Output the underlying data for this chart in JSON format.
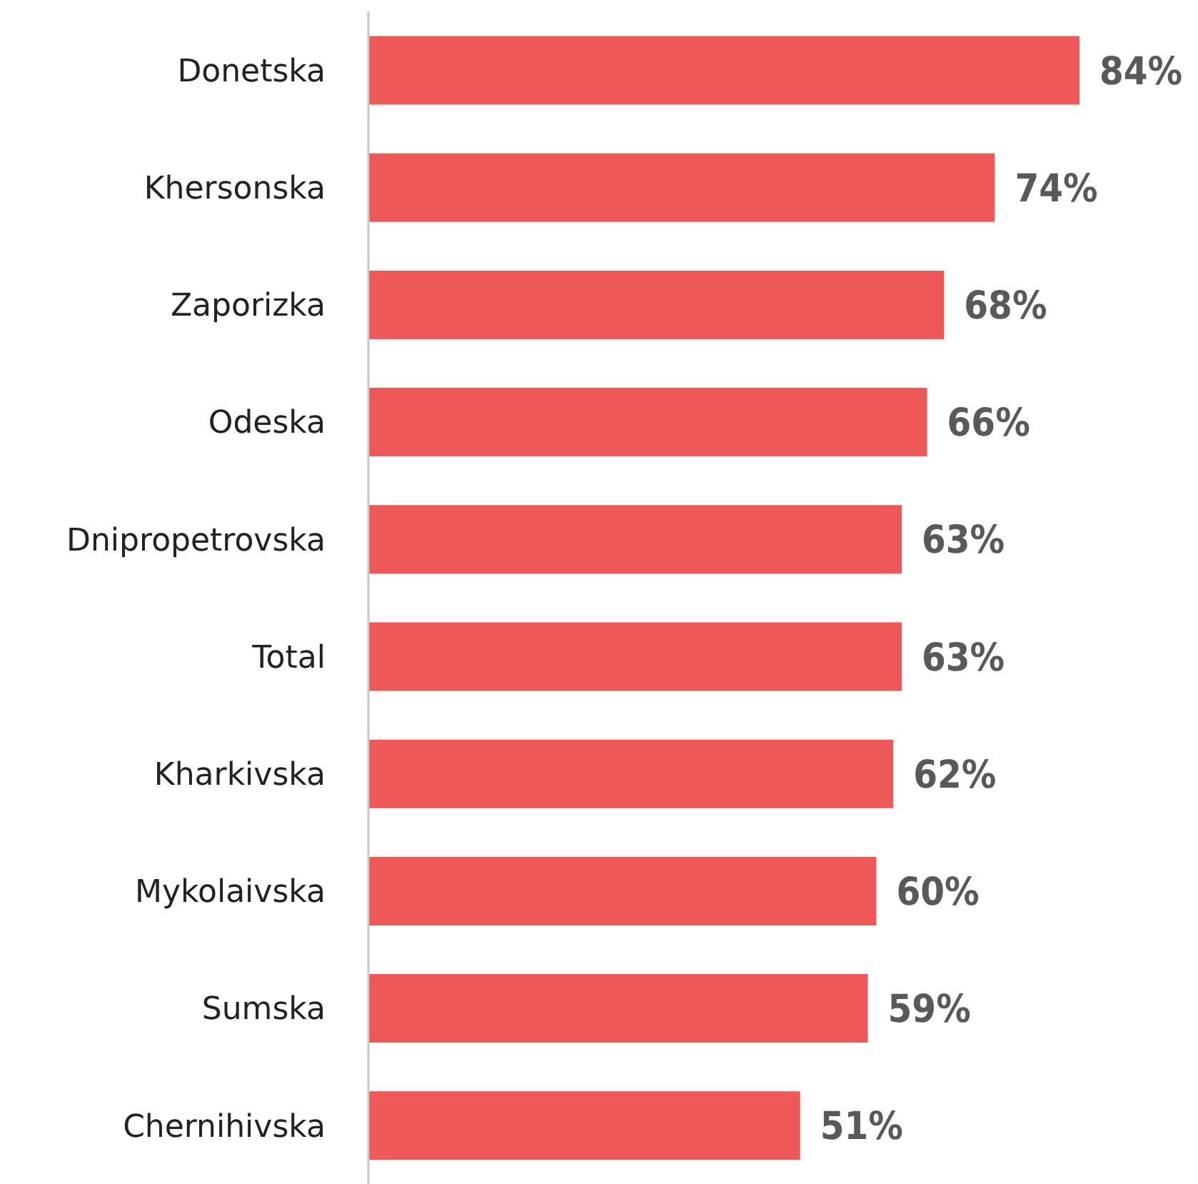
{
  "chart_data": {
    "type": "bar",
    "orientation": "horizontal",
    "categories": [
      "Donetska",
      "Khersonska",
      "Zaporizka",
      "Odeska",
      "Dnipropetrovska",
      "Total",
      "Kharkivska",
      "Mykolaivska",
      "Sumska",
      "Chernihivska"
    ],
    "values": [
      84,
      74,
      68,
      66,
      63,
      63,
      62,
      60,
      59,
      51
    ],
    "value_labels": [
      "84%",
      "74%",
      "68%",
      "66%",
      "63%",
      "63%",
      "62%",
      "60%",
      "59%",
      "51%"
    ],
    "color": "#ef5858",
    "grid": false,
    "legend": false
  }
}
